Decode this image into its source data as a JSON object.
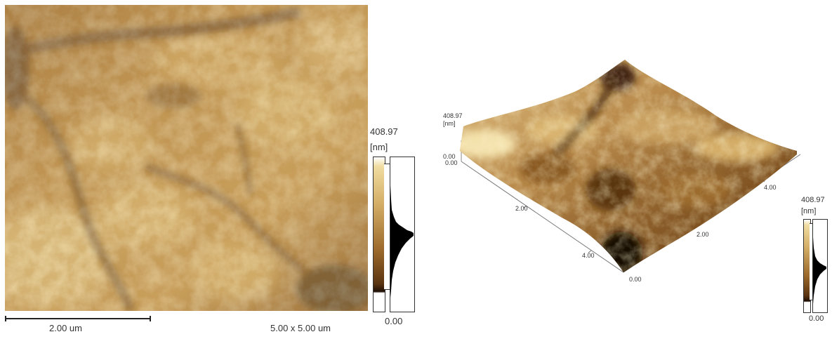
{
  "afm_2d": {
    "scale_bar_label": "2.00 um",
    "scan_size_label": "5.00 x 5.00 um",
    "colorbar": {
      "max_label": "408.97",
      "unit_label": "[nm]",
      "min_label": "0.00"
    }
  },
  "afm_3d": {
    "z_axis": {
      "max_label": "408.97",
      "unit_label": "[nm]",
      "min_label": "0.00",
      "origin_label": "0.00"
    },
    "x_axis_ticks": [
      "2.00",
      "4.00"
    ],
    "y_axis_ticks": [
      "2.00",
      "4.00"
    ],
    "corner_label": "0.00",
    "colorbar": {
      "max_label": "408.97",
      "unit_label": "[nm]",
      "min_label": "0.00"
    }
  },
  "colors": {
    "dark": "#2a1406",
    "mid": "#9a6a2c",
    "light": "#f2dfa0"
  }
}
